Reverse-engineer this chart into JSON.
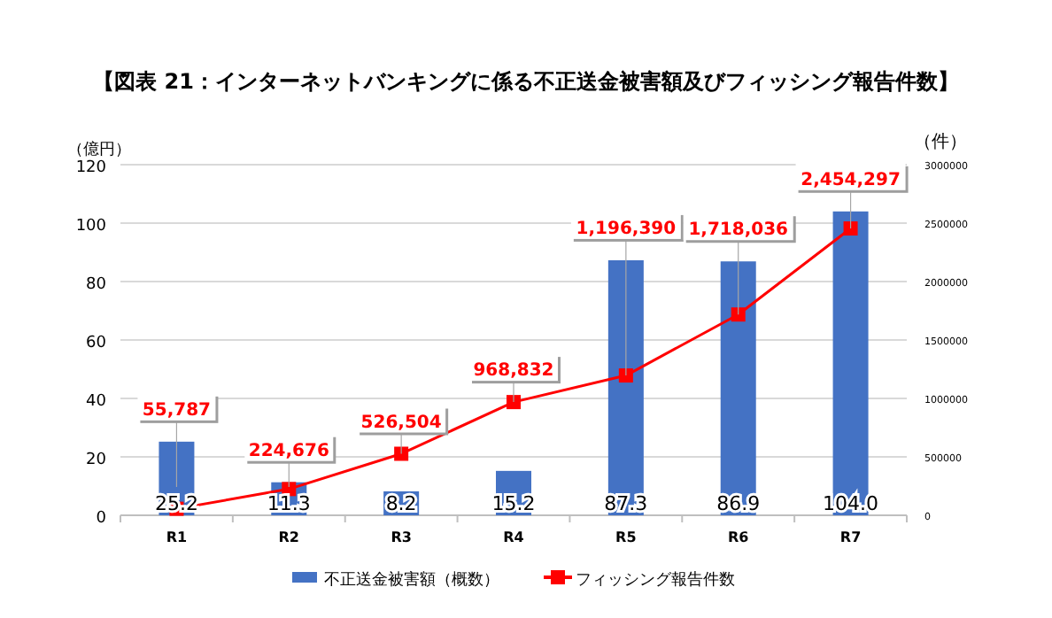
{
  "chart_data": {
    "type": "bar",
    "title": "【図表 21：インターネットバンキングに係る不正送金被害額及びフィッシング報告件数】",
    "categories": [
      "R1",
      "R2",
      "R3",
      "R4",
      "R5",
      "R6",
      "R7"
    ],
    "series": [
      {
        "name": "不正送金被害額（概数）",
        "color": "#4472c4",
        "values": [
          25.2,
          11.3,
          8.2,
          15.2,
          87.3,
          86.9,
          104.0
        ],
        "value_labels": [
          "25.2",
          "11.3",
          "8.2",
          "15.2",
          "87.3",
          "86.9",
          "104.0"
        ]
      },
      {
        "name": "フィッシング報告件数",
        "type": "line",
        "axis": "y2",
        "color": "#ff0000",
        "marker": "square",
        "values": [
          55787,
          224676,
          526504,
          968832,
          1196390,
          1718036,
          2454297
        ],
        "value_labels": [
          "55,787",
          "224,676",
          "526,504",
          "968,832",
          "1,196,390",
          "1,718,036",
          "2,454,297"
        ]
      }
    ],
    "ylabel": "（億円）",
    "y2label": "（件）",
    "ylim": [
      0,
      120
    ],
    "yticks": [
      0,
      20,
      40,
      60,
      80,
      100,
      120
    ],
    "y2lim": [
      0,
      3000000
    ],
    "y2ticks": [
      0,
      500000,
      1000000,
      1500000,
      2000000,
      2500000,
      3000000
    ],
    "grid": "y",
    "legend": "bottom"
  }
}
